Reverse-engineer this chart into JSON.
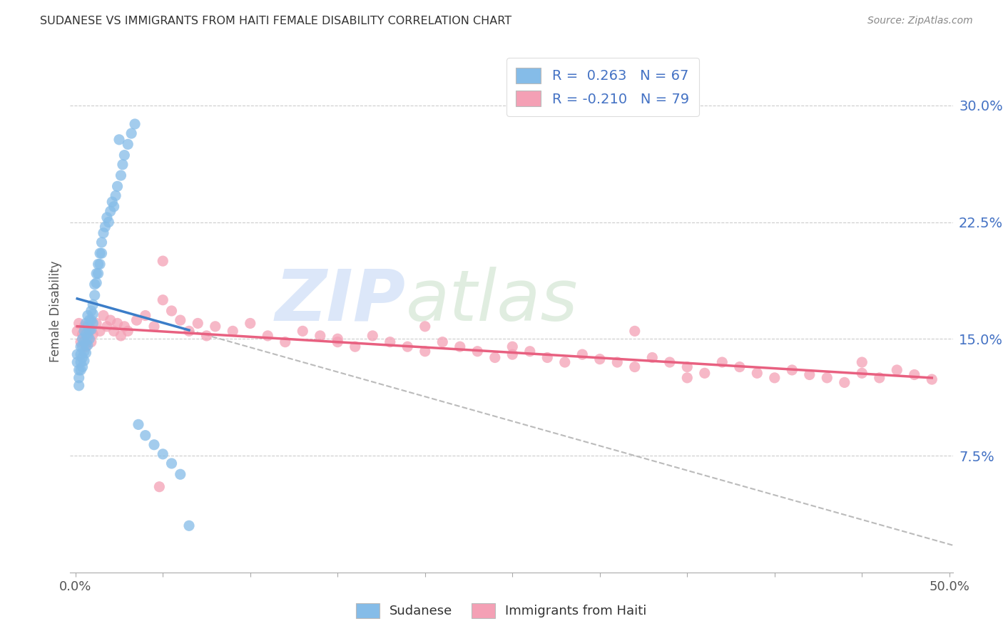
{
  "title": "SUDANESE VS IMMIGRANTS FROM HAITI FEMALE DISABILITY CORRELATION CHART",
  "source": "Source: ZipAtlas.com",
  "ylabel": "Female Disability",
  "ytick_labels": [
    "7.5%",
    "15.0%",
    "22.5%",
    "30.0%"
  ],
  "ytick_values": [
    0.075,
    0.15,
    0.225,
    0.3
  ],
  "xlim": [
    -0.003,
    0.502
  ],
  "ylim": [
    0.0,
    0.335
  ],
  "legend_entry1": "R =  0.263   N = 67",
  "legend_entry2": "R = -0.210   N = 79",
  "legend_label1": "Sudanese",
  "legend_label2": "Immigrants from Haiti",
  "color_blue": "#85BCE8",
  "color_pink": "#F4A0B5",
  "color_blue_line": "#3B7DC8",
  "color_pink_line": "#E86080",
  "color_blue_text": "#4472C4",
  "color_dashed_line": "#BBBBBB",
  "watermark_zip_color": "#C8D8F0",
  "watermark_atlas_color": "#D8E8D8",
  "sudanese_x": [
    0.001,
    0.001,
    0.002,
    0.002,
    0.002,
    0.003,
    0.003,
    0.003,
    0.003,
    0.004,
    0.004,
    0.004,
    0.004,
    0.005,
    0.005,
    0.005,
    0.005,
    0.006,
    0.006,
    0.006,
    0.006,
    0.007,
    0.007,
    0.007,
    0.007,
    0.008,
    0.008,
    0.008,
    0.009,
    0.009,
    0.009,
    0.01,
    0.01,
    0.01,
    0.011,
    0.011,
    0.012,
    0.012,
    0.013,
    0.013,
    0.014,
    0.014,
    0.015,
    0.015,
    0.016,
    0.017,
    0.018,
    0.019,
    0.02,
    0.021,
    0.022,
    0.023,
    0.024,
    0.025,
    0.026,
    0.027,
    0.028,
    0.03,
    0.032,
    0.034,
    0.036,
    0.04,
    0.045,
    0.05,
    0.055,
    0.06,
    0.065
  ],
  "sudanese_y": [
    0.14,
    0.135,
    0.13,
    0.125,
    0.12,
    0.145,
    0.14,
    0.135,
    0.13,
    0.15,
    0.145,
    0.138,
    0.132,
    0.155,
    0.148,
    0.142,
    0.136,
    0.16,
    0.153,
    0.147,
    0.141,
    0.165,
    0.158,
    0.152,
    0.146,
    0.162,
    0.156,
    0.15,
    0.168,
    0.162,
    0.156,
    0.172,
    0.166,
    0.16,
    0.185,
    0.178,
    0.192,
    0.186,
    0.198,
    0.192,
    0.205,
    0.198,
    0.212,
    0.205,
    0.218,
    0.222,
    0.228,
    0.225,
    0.232,
    0.238,
    0.235,
    0.242,
    0.248,
    0.278,
    0.255,
    0.262,
    0.268,
    0.275,
    0.282,
    0.288,
    0.095,
    0.088,
    0.082,
    0.076,
    0.07,
    0.063,
    0.03
  ],
  "haiti_x": [
    0.001,
    0.002,
    0.003,
    0.004,
    0.005,
    0.006,
    0.007,
    0.008,
    0.009,
    0.01,
    0.012,
    0.014,
    0.016,
    0.018,
    0.02,
    0.022,
    0.024,
    0.026,
    0.028,
    0.03,
    0.035,
    0.04,
    0.045,
    0.05,
    0.055,
    0.06,
    0.065,
    0.07,
    0.075,
    0.08,
    0.09,
    0.1,
    0.11,
    0.12,
    0.13,
    0.14,
    0.15,
    0.16,
    0.17,
    0.18,
    0.19,
    0.2,
    0.21,
    0.22,
    0.23,
    0.24,
    0.25,
    0.26,
    0.27,
    0.28,
    0.29,
    0.3,
    0.31,
    0.32,
    0.33,
    0.34,
    0.35,
    0.36,
    0.37,
    0.38,
    0.39,
    0.4,
    0.41,
    0.42,
    0.43,
    0.44,
    0.45,
    0.46,
    0.47,
    0.48,
    0.49,
    0.35,
    0.25,
    0.15,
    0.05,
    0.32,
    0.2,
    0.45,
    0.048
  ],
  "haiti_y": [
    0.155,
    0.16,
    0.148,
    0.153,
    0.158,
    0.145,
    0.15,
    0.155,
    0.148,
    0.153,
    0.16,
    0.155,
    0.165,
    0.158,
    0.162,
    0.155,
    0.16,
    0.152,
    0.158,
    0.155,
    0.162,
    0.165,
    0.158,
    0.175,
    0.168,
    0.162,
    0.155,
    0.16,
    0.152,
    0.158,
    0.155,
    0.16,
    0.152,
    0.148,
    0.155,
    0.152,
    0.148,
    0.145,
    0.152,
    0.148,
    0.145,
    0.142,
    0.148,
    0.145,
    0.142,
    0.138,
    0.145,
    0.142,
    0.138,
    0.135,
    0.14,
    0.137,
    0.135,
    0.132,
    0.138,
    0.135,
    0.132,
    0.128,
    0.135,
    0.132,
    0.128,
    0.125,
    0.13,
    0.127,
    0.125,
    0.122,
    0.128,
    0.125,
    0.13,
    0.127,
    0.124,
    0.125,
    0.14,
    0.15,
    0.2,
    0.155,
    0.158,
    0.135,
    0.055
  ],
  "blue_line_x0": 0.001,
  "blue_line_x1": 0.065,
  "pink_line_x0": 0.001,
  "pink_line_x1": 0.49,
  "dashed_line_x0": 0.065,
  "dashed_line_x1": 0.502
}
